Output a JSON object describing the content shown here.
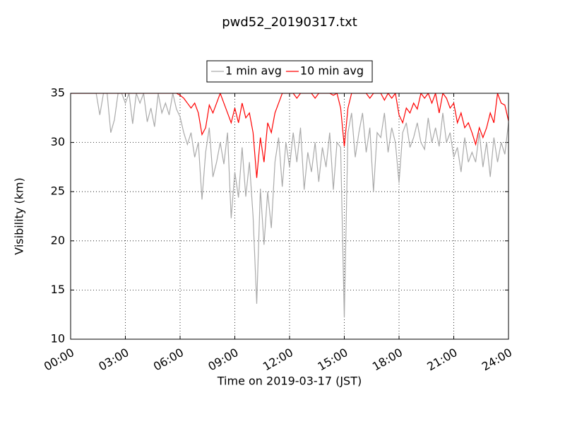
{
  "chart_data": {
    "type": "line",
    "title": "pwd52_20190317.txt",
    "xlabel": "Time on 2019-03-17 (JST)",
    "ylabel": "Visibility (km)",
    "xlim": [
      0,
      24
    ],
    "ylim": [
      10,
      35
    ],
    "xticks": [
      {
        "value": 0,
        "label": "00:00"
      },
      {
        "value": 3,
        "label": "03:00"
      },
      {
        "value": 6,
        "label": "06:00"
      },
      {
        "value": 9,
        "label": "09:00"
      },
      {
        "value": 12,
        "label": "12:00"
      },
      {
        "value": 15,
        "label": "15:00"
      },
      {
        "value": 18,
        "label": "18:00"
      },
      {
        "value": 21,
        "label": "21:00"
      },
      {
        "value": 24,
        "label": "24:00"
      }
    ],
    "yticks": [
      10,
      15,
      20,
      25,
      30,
      35
    ],
    "grid": true,
    "legend": "upper center",
    "x": [
      0,
      0.2,
      0.4,
      0.6,
      0.8,
      1,
      1.2,
      1.4,
      1.6,
      1.8,
      2,
      2.2,
      2.4,
      2.6,
      2.8,
      3,
      3.2,
      3.4,
      3.6,
      3.8,
      4,
      4.2,
      4.4,
      4.6,
      4.8,
      5,
      5.2,
      5.4,
      5.6,
      5.8,
      6,
      6.2,
      6.4,
      6.6,
      6.8,
      7,
      7.2,
      7.4,
      7.6,
      7.8,
      8,
      8.2,
      8.4,
      8.6,
      8.8,
      9,
      9.2,
      9.4,
      9.6,
      9.8,
      10,
      10.2,
      10.4,
      10.6,
      10.8,
      11,
      11.2,
      11.4,
      11.6,
      11.8,
      12,
      12.2,
      12.4,
      12.6,
      12.8,
      13,
      13.2,
      13.4,
      13.6,
      13.8,
      14,
      14.2,
      14.4,
      14.6,
      14.8,
      15,
      15.2,
      15.4,
      15.6,
      15.8,
      16,
      16.2,
      16.4,
      16.6,
      16.8,
      17,
      17.2,
      17.4,
      17.6,
      17.8,
      18,
      18.2,
      18.4,
      18.6,
      18.8,
      19,
      19.2,
      19.4,
      19.6,
      19.8,
      20,
      20.2,
      20.4,
      20.6,
      20.8,
      21,
      21.2,
      21.4,
      21.6,
      21.8,
      22,
      22.2,
      22.4,
      22.6,
      22.8,
      23,
      23.2,
      23.4,
      23.6,
      23.8,
      24
    ],
    "series": [
      {
        "name": "1 min avg",
        "color": "#aaaaaa",
        "values": [
          35,
          35,
          35,
          35,
          35,
          35,
          35,
          35,
          32.8,
          35,
          35,
          31,
          32.3,
          35,
          35,
          34,
          35,
          31.9,
          35,
          34,
          35,
          32.1,
          33.5,
          31.6,
          35,
          33,
          34,
          32.8,
          35,
          33.4,
          32.6,
          31,
          29.8,
          31,
          28.5,
          30,
          24.2,
          29,
          31.5,
          26.5,
          28,
          30,
          27.8,
          31,
          22.3,
          27,
          24.4,
          29.5,
          24.5,
          28,
          22.5,
          13.6,
          25.3,
          19.6,
          25,
          21.3,
          28,
          30.5,
          25.5,
          30,
          27.5,
          31,
          28,
          31.5,
          25.2,
          29,
          27,
          30,
          26,
          29.5,
          27.5,
          31,
          25.2,
          30,
          29.5,
          12.2,
          31,
          33,
          28.5,
          31,
          33,
          29,
          31.5,
          25,
          31,
          30.5,
          33,
          29,
          31.5,
          30,
          25.9,
          31,
          32,
          29.5,
          30.5,
          32,
          30,
          29.3,
          32.5,
          30,
          31.5,
          29.6,
          33,
          30,
          31,
          28.5,
          29.5,
          27,
          30.5,
          28,
          29,
          28,
          31,
          27.5,
          30,
          26.5,
          30.5,
          28,
          30,
          28.8,
          32
        ]
      },
      {
        "name": "10 min avg",
        "color": "#ff0000",
        "values": [
          35,
          35,
          35,
          35,
          35,
          35,
          35,
          35,
          35,
          35,
          35,
          35,
          35,
          35,
          35,
          35,
          35,
          35,
          35,
          35,
          35,
          35,
          35,
          35,
          35,
          35,
          35,
          35,
          35,
          35,
          34.8,
          34.5,
          34,
          33.5,
          34,
          33,
          30.8,
          31.5,
          33.8,
          33,
          34,
          35,
          34,
          33,
          32,
          33.5,
          32,
          34,
          32.5,
          33,
          31,
          26.4,
          30.5,
          28,
          32,
          31,
          33,
          34,
          35,
          35,
          35,
          35,
          34.5,
          35,
          35,
          35,
          35,
          34.5,
          35,
          35,
          35,
          35,
          34.8,
          35,
          33.5,
          29.6,
          33.5,
          35,
          35,
          35,
          35,
          35,
          34.5,
          35,
          35,
          35,
          34.3,
          35,
          34.5,
          35,
          32.8,
          32,
          33.5,
          33,
          34,
          33.4,
          35,
          34.5,
          35,
          34,
          35,
          33,
          35,
          34.5,
          33.5,
          34,
          32,
          33,
          31.5,
          32,
          31,
          29.8,
          31.5,
          30.5,
          31.5,
          33,
          32,
          35,
          34,
          33.8,
          32.2
        ]
      }
    ]
  }
}
